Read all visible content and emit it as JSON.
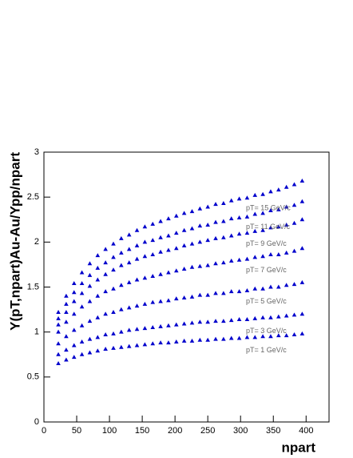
{
  "chart_data": {
    "type": "scatter",
    "x_label": "npart",
    "y_label": "Y(pT,npart)Au-Au/Ypp/npart",
    "x": [
      22,
      34,
      46,
      58,
      70,
      82,
      94,
      106,
      118,
      130,
      142,
      154,
      166,
      178,
      190,
      202,
      214,
      226,
      238,
      250,
      262,
      274,
      286,
      298,
      310,
      322,
      334,
      346,
      358,
      370,
      382,
      394
    ],
    "series": [
      {
        "name": "pT= 1 GeV/c",
        "color": "#0000cc",
        "values": [
          0.65,
          0.69,
          0.72,
          0.75,
          0.77,
          0.79,
          0.81,
          0.82,
          0.83,
          0.84,
          0.85,
          0.86,
          0.87,
          0.88,
          0.88,
          0.89,
          0.9,
          0.9,
          0.91,
          0.91,
          0.92,
          0.92,
          0.93,
          0.93,
          0.94,
          0.94,
          0.95,
          0.95,
          0.96,
          0.96,
          0.97,
          0.98
        ]
      },
      {
        "name": "pT= 3 GeV/c",
        "color": "#0000cc",
        "values": [
          0.75,
          0.8,
          0.85,
          0.89,
          0.92,
          0.94,
          0.97,
          0.98,
          1.0,
          1.02,
          1.03,
          1.04,
          1.05,
          1.06,
          1.07,
          1.08,
          1.09,
          1.1,
          1.11,
          1.11,
          1.12,
          1.12,
          1.13,
          1.14,
          1.14,
          1.15,
          1.16,
          1.16,
          1.17,
          1.18,
          1.19,
          1.2
        ]
      },
      {
        "name": "pT= 5 GeV/c",
        "color": "#0000cc",
        "values": [
          0.87,
          0.95,
          1.02,
          1.07,
          1.12,
          1.16,
          1.2,
          1.22,
          1.25,
          1.27,
          1.29,
          1.31,
          1.33,
          1.34,
          1.35,
          1.37,
          1.38,
          1.39,
          1.41,
          1.41,
          1.43,
          1.43,
          1.45,
          1.45,
          1.46,
          1.48,
          1.48,
          1.5,
          1.5,
          1.52,
          1.53,
          1.55
        ]
      },
      {
        "name": "pT= 7 GeV/c",
        "color": "#0000cc",
        "values": [
          1.0,
          1.11,
          1.2,
          1.28,
          1.34,
          1.4,
          1.45,
          1.48,
          1.52,
          1.55,
          1.58,
          1.6,
          1.62,
          1.64,
          1.66,
          1.68,
          1.7,
          1.72,
          1.73,
          1.74,
          1.76,
          1.77,
          1.79,
          1.8,
          1.81,
          1.83,
          1.84,
          1.86,
          1.86,
          1.88,
          1.9,
          1.93
        ]
      },
      {
        "name": "pT= 9 GeV/c",
        "color": "#0000cc",
        "values": [
          1.08,
          1.22,
          1.34,
          1.43,
          1.51,
          1.58,
          1.64,
          1.69,
          1.74,
          1.77,
          1.81,
          1.84,
          1.86,
          1.89,
          1.91,
          1.93,
          1.96,
          1.98,
          2.0,
          2.02,
          2.04,
          2.05,
          2.07,
          2.09,
          2.1,
          2.12,
          2.13,
          2.16,
          2.17,
          2.19,
          2.21,
          2.25
        ]
      },
      {
        "name": "pT= 11 GeV/c",
        "color": "#0000cc",
        "values": [
          1.15,
          1.31,
          1.44,
          1.54,
          1.63,
          1.71,
          1.77,
          1.83,
          1.88,
          1.92,
          1.96,
          2.0,
          2.02,
          2.05,
          2.07,
          2.1,
          2.13,
          2.15,
          2.18,
          2.19,
          2.22,
          2.23,
          2.26,
          2.27,
          2.28,
          2.31,
          2.32,
          2.35,
          2.36,
          2.39,
          2.41,
          2.45
        ]
      },
      {
        "name": "pT= 15 GeV/c",
        "color": "#0000cc",
        "values": [
          1.22,
          1.4,
          1.54,
          1.66,
          1.76,
          1.85,
          1.92,
          1.98,
          2.04,
          2.08,
          2.13,
          2.17,
          2.2,
          2.23,
          2.26,
          2.29,
          2.32,
          2.34,
          2.37,
          2.39,
          2.42,
          2.43,
          2.46,
          2.48,
          2.49,
          2.52,
          2.53,
          2.56,
          2.58,
          2.61,
          2.64,
          2.68
        ]
      }
    ],
    "xlim": [
      0,
      435
    ],
    "xticks": [
      0,
      50,
      100,
      150,
      200,
      250,
      300,
      350,
      400
    ],
    "ylim": [
      0,
      3
    ],
    "yticks": [
      0,
      0.5,
      1,
      1.5,
      2,
      2.5,
      3
    ]
  }
}
